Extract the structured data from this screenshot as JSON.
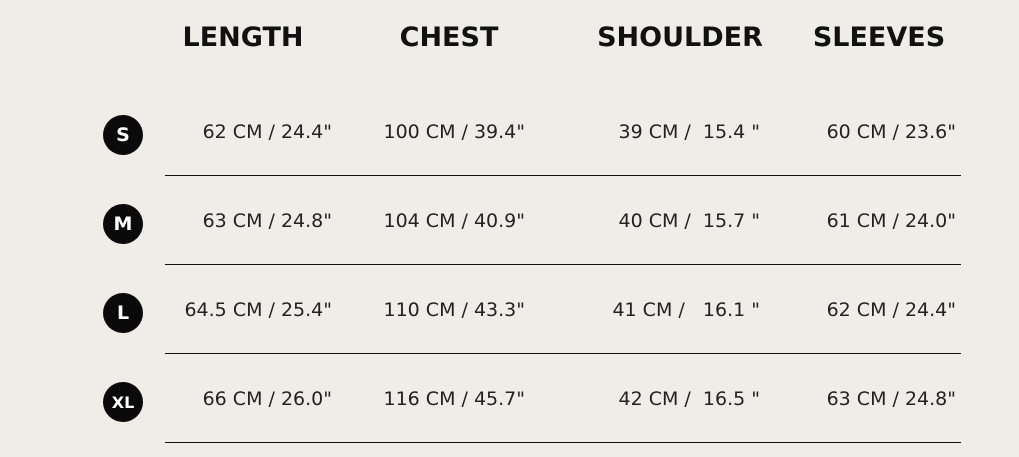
{
  "columns": [
    "LENGTH",
    "CHEST",
    "SHOULDER",
    "SLEEVES"
  ],
  "rows": [
    {
      "size": "S",
      "values": [
        "62 CM / 24.4\"",
        "100 CM / 39.4\"",
        "39 CM /  15.4 \"",
        "60 CM / 23.6\""
      ]
    },
    {
      "size": "M",
      "values": [
        "63 CM / 24.8\"",
        "104 CM / 40.9\"",
        "40 CM /  15.7 \"",
        "61 CM / 24.0\""
      ]
    },
    {
      "size": "L",
      "values": [
        "64.5 CM / 25.4\"",
        "110 CM / 43.3\"",
        "41 CM /   16.1 \"",
        "62 CM / 24.4\""
      ]
    },
    {
      "size": "XL",
      "values": [
        "66 CM / 26.0\"",
        "116 CM / 45.7\"",
        "42 CM /  16.5 \"",
        "63 CM / 24.8\""
      ]
    }
  ],
  "colors": {
    "background": "#f0ede8",
    "badge": "#0a0a0a",
    "text": "#1a1a1a"
  }
}
